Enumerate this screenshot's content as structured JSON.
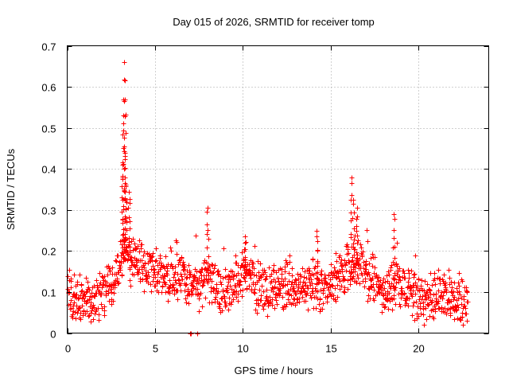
{
  "chart_data": {
    "type": "scatter",
    "title": "Day 015 of 2026, SRMTID for receiver tomp",
    "xlabel": "GPS time / hours",
    "ylabel": "SRMTID / TECUs",
    "xlim": [
      0,
      24
    ],
    "ylim": [
      0,
      0.7
    ],
    "xticks": [
      0,
      5,
      10,
      15,
      20
    ],
    "xtick_labels": [
      "0",
      "5",
      "10",
      "15",
      "20"
    ],
    "yticks": [
      0,
      0.1,
      0.2,
      0.3,
      0.4,
      0.5,
      0.6,
      0.7
    ],
    "ytick_labels": [
      "0",
      "0.1",
      "0.2",
      "0.3",
      "0.4",
      "0.5",
      "0.6",
      "0.7"
    ],
    "grid": true,
    "marker": "plus",
    "color": "#ff0000",
    "baseline_trend": [
      [
        0.0,
        0.08
      ],
      [
        0.5,
        0.09
      ],
      [
        1.0,
        0.085
      ],
      [
        1.5,
        0.085
      ],
      [
        2.0,
        0.1
      ],
      [
        2.5,
        0.11
      ],
      [
        3.0,
        0.16
      ],
      [
        3.3,
        0.2
      ],
      [
        3.6,
        0.18
      ],
      [
        4.0,
        0.17
      ],
      [
        4.5,
        0.15
      ],
      [
        5.0,
        0.14
      ],
      [
        5.5,
        0.13
      ],
      [
        6.0,
        0.12
      ],
      [
        6.5,
        0.13
      ],
      [
        7.0,
        0.12
      ],
      [
        7.5,
        0.11
      ],
      [
        8.0,
        0.14
      ],
      [
        8.5,
        0.12
      ],
      [
        9.0,
        0.1
      ],
      [
        9.5,
        0.12
      ],
      [
        10.0,
        0.15
      ],
      [
        10.5,
        0.13
      ],
      [
        11.0,
        0.1
      ],
      [
        11.5,
        0.11
      ],
      [
        12.0,
        0.12
      ],
      [
        12.5,
        0.13
      ],
      [
        13.0,
        0.1
      ],
      [
        13.5,
        0.11
      ],
      [
        14.0,
        0.12
      ],
      [
        14.5,
        0.1
      ],
      [
        15.0,
        0.12
      ],
      [
        15.5,
        0.15
      ],
      [
        16.0,
        0.16
      ],
      [
        16.5,
        0.17
      ],
      [
        17.0,
        0.15
      ],
      [
        17.5,
        0.13
      ],
      [
        18.0,
        0.1
      ],
      [
        18.5,
        0.11
      ],
      [
        19.0,
        0.12
      ],
      [
        19.5,
        0.1
      ],
      [
        20.0,
        0.09
      ],
      [
        20.5,
        0.08
      ],
      [
        21.0,
        0.09
      ],
      [
        21.5,
        0.1
      ],
      [
        22.0,
        0.09
      ],
      [
        22.5,
        0.08
      ],
      [
        22.8,
        0.08
      ]
    ],
    "spikes": [
      {
        "x": 3.25,
        "y": 0.66
      },
      {
        "x": 3.3,
        "y": 0.615
      },
      {
        "x": 3.2,
        "y": 0.57
      },
      {
        "x": 3.2,
        "y": 0.51
      },
      {
        "x": 3.3,
        "y": 0.44
      },
      {
        "x": 3.15,
        "y": 0.41
      },
      {
        "x": 3.3,
        "y": 0.365
      },
      {
        "x": 3.5,
        "y": 0.345
      },
      {
        "x": 16.2,
        "y": 0.38
      },
      {
        "x": 16.3,
        "y": 0.325
      },
      {
        "x": 16.5,
        "y": 0.305
      },
      {
        "x": 8.0,
        "y": 0.305
      },
      {
        "x": 18.6,
        "y": 0.29
      },
      {
        "x": 14.2,
        "y": 0.25
      },
      {
        "x": 10.1,
        "y": 0.235
      }
    ],
    "zero_points": [
      7.0,
      7.05,
      7.4
    ],
    "x_end": 22.8,
    "point_count": 1400
  }
}
